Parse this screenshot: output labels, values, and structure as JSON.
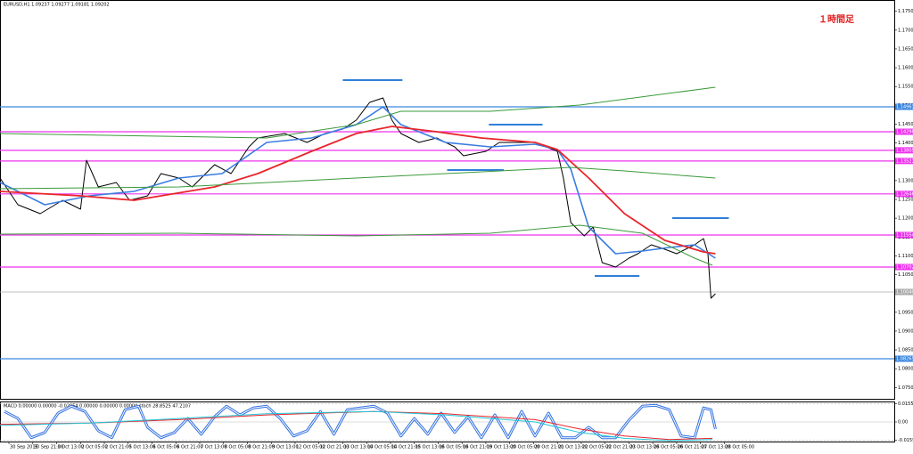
{
  "chart_data": [
    {
      "type": "line",
      "title": "EURUSD,H1  1.09237 1.09277 1.09181 1.09202",
      "annotation": "１時間足",
      "xlim": [
        -6,
        594
      ],
      "ylim": [
        1.072,
        1.178
      ],
      "xticks": [
        {
          "value": 0,
          "label": "30 Sep 2015"
        },
        {
          "value": 16,
          "label": "30 Sep 21:00"
        },
        {
          "value": 32,
          "label": "1 Oct 13:00"
        },
        {
          "value": 48,
          "label": "2 Oct 05:00"
        },
        {
          "value": 64,
          "label": "2 Oct 21:00"
        },
        {
          "value": 80,
          "label": "5 Oct 13:00"
        },
        {
          "value": 96,
          "label": "6 Oct 05:00"
        },
        {
          "value": 112,
          "label": "6 Oct 21:00"
        },
        {
          "value": 128,
          "label": "7 Oct 13:00"
        },
        {
          "value": 144,
          "label": "8 Oct 05:00"
        },
        {
          "value": 160,
          "label": "8 Oct 21:00"
        },
        {
          "value": 176,
          "label": "9 Oct 13:00"
        },
        {
          "value": 192,
          "label": "12 Oct 05:00"
        },
        {
          "value": 208,
          "label": "12 Oct 21:00"
        },
        {
          "value": 224,
          "label": "13 Oct 13:00"
        },
        {
          "value": 240,
          "label": "14 Oct 05:00"
        },
        {
          "value": 256,
          "label": "14 Oct 21:00"
        },
        {
          "value": 272,
          "label": "15 Oct 13:00"
        },
        {
          "value": 288,
          "label": "16 Oct 05:00"
        },
        {
          "value": 304,
          "label": "16 Oct 21:00"
        },
        {
          "value": 320,
          "label": "19 Oct 13:00"
        },
        {
          "value": 336,
          "label": "20 Oct 05:00"
        },
        {
          "value": 352,
          "label": "20 Oct 21:00"
        },
        {
          "value": 368,
          "label": "21 Oct 13:00"
        },
        {
          "value": 384,
          "label": "22 Oct 05:00"
        },
        {
          "value": 400,
          "label": "22 Oct 21:00"
        },
        {
          "value": 416,
          "label": "23 Oct 13:00"
        },
        {
          "value": 432,
          "label": "26 Oct 05:00"
        },
        {
          "value": 448,
          "label": "26 Oct 21:00"
        },
        {
          "value": 464,
          "label": "27 Oct 13:00"
        },
        {
          "value": 480,
          "label": "28 Oct 05:00"
        }
      ],
      "yticks": [
        {
          "value": 1.075,
          "label": "1.07500"
        },
        {
          "value": 1.08,
          "label": "1.08000"
        },
        {
          "value": 1.085,
          "label": "1.08500"
        },
        {
          "value": 1.09,
          "label": "1.09000"
        },
        {
          "value": 1.095,
          "label": "1.09500"
        },
        {
          "value": 1.1,
          "label": "1.10000"
        },
        {
          "value": 1.105,
          "label": "1.10500"
        },
        {
          "value": 1.11,
          "label": "1.11000"
        },
        {
          "value": 1.115,
          "label": "1.11500"
        },
        {
          "value": 1.12,
          "label": "1.12000"
        },
        {
          "value": 1.125,
          "label": "1.12500"
        },
        {
          "value": 1.13,
          "label": "1.13000"
        },
        {
          "value": 1.135,
          "label": "1.13500"
        },
        {
          "value": 1.14,
          "label": "1.14000"
        },
        {
          "value": 1.145,
          "label": "1.14500"
        },
        {
          "value": 1.15,
          "label": "1.15000"
        },
        {
          "value": 1.155,
          "label": "1.15500"
        },
        {
          "value": 1.16,
          "label": "1.16000"
        },
        {
          "value": 1.165,
          "label": "1.16500"
        },
        {
          "value": 1.17,
          "label": "1.17000"
        },
        {
          "value": 1.175,
          "label": "1.17500"
        }
      ],
      "series": [
        {
          "color": "#000000",
          "width": 1,
          "x": [
            -6,
            6,
            21,
            36,
            48,
            52,
            60,
            72,
            81,
            93,
            102,
            114,
            123,
            138,
            149,
            161,
            167,
            185,
            200,
            212,
            224,
            233,
            242,
            251,
            257,
            263,
            275,
            287,
            299,
            305,
            320,
            329,
            341,
            353,
            368,
            372,
            377,
            386,
            392,
            398,
            407,
            416,
            422,
            431,
            440,
            448,
            460,
            466,
            469,
            471,
            474
          ],
          "values": [
            1.13068,
            1.12358,
            1.12122,
            1.12477,
            1.1224,
            1.13541,
            1.12831,
            1.1295,
            1.12477,
            1.12595,
            1.13186,
            1.13068,
            1.12831,
            1.13423,
            1.13186,
            1.13896,
            1.14133,
            1.14251,
            1.14014,
            1.14251,
            1.14369,
            1.14606,
            1.15079,
            1.15197,
            1.14606,
            1.14251,
            1.14014,
            1.14133,
            1.13896,
            1.1366,
            1.13778,
            1.14014,
            1.14014,
            1.14014,
            1.13778,
            1.13068,
            1.11885,
            1.1153,
            1.11767,
            1.1082,
            1.10702,
            1.10939,
            1.11057,
            1.11293,
            1.11175,
            1.11057,
            1.11293,
            1.11459,
            1.11057,
            1.09874,
            1.09992
          ]
        },
        {
          "color": "#3b7de0",
          "width": 1.6,
          "x": [
            -6,
            24,
            54,
            84,
            114,
            143,
            173,
            203,
            233,
            251,
            263,
            293,
            323,
            353,
            368,
            377,
            389,
            407,
            425,
            443,
            460,
            474
          ],
          "values": [
            1.1295,
            1.12358,
            1.12595,
            1.12713,
            1.13068,
            1.13186,
            1.14014,
            1.14133,
            1.14488,
            1.14961,
            1.14488,
            1.14014,
            1.13896,
            1.13967,
            1.13825,
            1.13305,
            1.11767,
            1.11057,
            1.11128,
            1.11222,
            1.11293,
            1.10939
          ]
        },
        {
          "color": "#e8262c",
          "width": 1.8,
          "x": [
            -6,
            48,
            84,
            138,
            167,
            203,
            233,
            257,
            287,
            317,
            353,
            368,
            389,
            413,
            440,
            466,
            474
          ],
          "values": [
            1.12713,
            1.12595,
            1.12477,
            1.12831,
            1.13186,
            1.13778,
            1.14251,
            1.1444,
            1.14298,
            1.14133,
            1.14014,
            1.13825,
            1.13068,
            1.12122,
            1.11412,
            1.11104,
            1.11057
          ]
        },
        {
          "color": "#3a9a3a",
          "width": 1,
          "x": [
            -6,
            114,
            233,
            293,
            377,
            413,
            474
          ],
          "values": [
            1.12784,
            1.12831,
            1.13068,
            1.13186,
            1.13352,
            1.13257,
            1.13068
          ]
        },
        {
          "color": "#3a9a3a",
          "width": 1,
          "x": [
            -6,
            173,
            233,
            263,
            323,
            383,
            474
          ],
          "values": [
            1.14251,
            1.14133,
            1.14488,
            1.14843,
            1.14843,
            1.15008,
            1.15481
          ]
        },
        {
          "color": "#3a9a3a",
          "width": 1,
          "x": [
            -6,
            114,
            233,
            323,
            383,
            425,
            460,
            472
          ],
          "values": [
            1.11577,
            1.11601,
            1.1153,
            1.11601,
            1.11814,
            1.11601,
            1.10939,
            1.10749
          ]
        }
      ],
      "levels": [
        {
          "value": 1.14961,
          "label": "1.14961",
          "color": "#3b86e0"
        },
        {
          "value": 1.14298,
          "label": "1.14298",
          "color": "#ee33ee"
        },
        {
          "value": 1.13805,
          "label": "1.13805",
          "color": "#ee33ee"
        },
        {
          "value": 1.13521,
          "label": "1.13521",
          "color": "#ee33ee"
        },
        {
          "value": 1.12646,
          "label": "1.12646",
          "color": "#ee33ee"
        },
        {
          "value": 1.11554,
          "label": "1.11554",
          "color": "#ee33ee"
        },
        {
          "value": 1.10702,
          "label": "1.10702",
          "color": "#ee33ee"
        },
        {
          "value": 1.1004,
          "label": "1.10040",
          "color": "#aaaaaa"
        },
        {
          "value": 1.08265,
          "label": "1.08265",
          "color": "#3b86e0"
        }
      ],
      "segments": [
        {
          "value": 1.15671,
          "x": [
            224,
            264
          ],
          "color": "#2f7fd8"
        },
        {
          "value": 1.14488,
          "x": [
            322,
            358
          ],
          "color": "#2f7fd8"
        },
        {
          "value": 1.13281,
          "x": [
            294,
            332
          ],
          "color": "#2f7fd8"
        },
        {
          "value": 1.12003,
          "x": [
            445,
            483
          ],
          "color": "#2f7fd8"
        },
        {
          "value": 1.10466,
          "x": [
            393,
            423
          ],
          "color": "#2f7fd8"
        }
      ]
    },
    {
      "type": "line",
      "title": "MACD 0.00000 0.00000 -0.02954 0.00000 0.00000 0.00000  stoch 28.8525 47.2107",
      "xlim": [
        -6,
        594
      ],
      "ylim": [
        -0.0175,
        0.0175
      ],
      "yticks": [
        {
          "value": 0.01558,
          "label": "0.01558"
        },
        {
          "value": 0,
          "label": "0.00"
        },
        {
          "value": -0.01558,
          "label": "-0.01558"
        }
      ],
      "series": [
        {
          "color": "#2f6fe0",
          "width": 3,
          "x": [
            -3,
            6,
            15,
            24,
            33,
            42,
            51,
            60,
            69,
            78,
            87,
            93,
            102,
            111,
            120,
            129,
            138,
            146,
            155,
            164,
            173,
            182,
            191,
            200,
            209,
            218,
            227,
            236,
            245,
            254,
            263,
            272,
            281,
            290,
            299,
            308,
            317,
            326,
            335,
            344,
            353,
            362,
            371,
            380,
            389,
            398,
            407,
            416,
            425,
            434,
            443,
            451,
            460,
            466,
            471,
            474
          ],
          "values": [
            0.009,
            0.003,
            -0.0135,
            -0.009,
            0.0075,
            0.0135,
            0.009,
            -0.0075,
            -0.0135,
            0.0105,
            0.0135,
            -0.0045,
            -0.0135,
            -0.009,
            0.003,
            -0.0105,
            0.0045,
            0.0135,
            0.006,
            0.012,
            0.0135,
            0.003,
            -0.012,
            -0.0075,
            0.009,
            -0.0105,
            0.0105,
            0.012,
            0.0135,
            0.0075,
            -0.012,
            0.003,
            -0.0105,
            0.0075,
            -0.009,
            0.0045,
            -0.0135,
            0.006,
            -0.0135,
            0.009,
            -0.012,
            0.0075,
            -0.0135,
            -0.0135,
            -0.0045,
            -0.0135,
            -0.0135,
            0.0015,
            0.0135,
            0.01425,
            0.0105,
            -0.012,
            -0.0135,
            0.012,
            0.0105,
            -0.006
          ]
        },
        {
          "color": "#e8262c",
          "width": 1,
          "x": [
            -6,
            54,
            114,
            173,
            245,
            293,
            353,
            383,
            413,
            443,
            472
          ],
          "values": [
            -0.002,
            -0.001,
            0.002,
            0.006,
            0.009,
            0.007,
            0.002,
            -0.006,
            -0.012,
            -0.015,
            -0.014
          ]
        },
        {
          "color": "#22c8d8",
          "width": 1,
          "x": [
            -6,
            54,
            114,
            173,
            245,
            293,
            353,
            383,
            413,
            443,
            472
          ],
          "values": [
            -0.003,
            -0.001,
            0.003,
            0.007,
            0.009,
            0.006,
            0.0,
            -0.009,
            -0.014,
            -0.016,
            -0.015
          ]
        }
      ]
    }
  ]
}
